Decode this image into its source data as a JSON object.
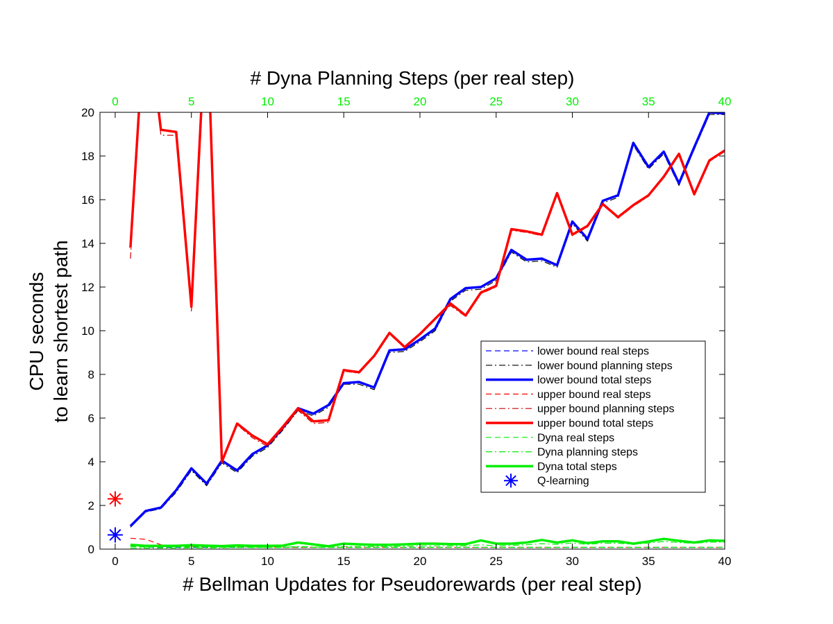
{
  "chart_data": {
    "type": "line",
    "xlabel": "# Bellman Updates for Pseudorewards (per real step)",
    "x2label": "# Dyna Planning Steps (per real step)",
    "ylabel": [
      "CPU seconds",
      "to learn shortest path"
    ],
    "xlim": [
      -1,
      40
    ],
    "ylim": [
      0,
      20
    ],
    "xticks": [
      0,
      5,
      10,
      15,
      20,
      25,
      30,
      35,
      40
    ],
    "yticks": [
      0,
      2,
      4,
      6,
      8,
      10,
      12,
      14,
      16,
      18,
      20
    ],
    "top_xticks": [
      0,
      5,
      10,
      15,
      20,
      25,
      30,
      35,
      40
    ],
    "top_axis_color": "#00ee00",
    "grid": false,
    "legend_position": "lower-right",
    "x": [
      1,
      2,
      3,
      4,
      5,
      6,
      7,
      8,
      9,
      10,
      11,
      12,
      13,
      14,
      15,
      16,
      17,
      18,
      19,
      20,
      21,
      22,
      23,
      24,
      25,
      26,
      27,
      28,
      29,
      30,
      31,
      32,
      33,
      34,
      35,
      36,
      37,
      38,
      39,
      40
    ],
    "series": [
      {
        "name": "lower bound real steps",
        "color": "#0000ff",
        "style": "dashed",
        "width": 1.2,
        "values": [
          0.15,
          0.1,
          0.08,
          0.08,
          0.08,
          0.08,
          0.08,
          0.08,
          0.08,
          0.08,
          0.08,
          0.08,
          0.08,
          0.08,
          0.08,
          0.08,
          0.08,
          0.08,
          0.08,
          0.08,
          0.08,
          0.08,
          0.08,
          0.08,
          0.08,
          0.08,
          0.08,
          0.08,
          0.08,
          0.08,
          0.08,
          0.08,
          0.08,
          0.08,
          0.08,
          0.08,
          0.08,
          0.08,
          0.08,
          0.08
        ]
      },
      {
        "name": "lower bound planning steps",
        "color": "#000000",
        "style": "dashdot",
        "width": 1.2,
        "values": [
          1.0,
          1.7,
          1.85,
          2.6,
          3.6,
          2.9,
          3.95,
          3.5,
          4.25,
          4.65,
          5.45,
          6.35,
          6.1,
          6.5,
          7.55,
          7.55,
          7.3,
          9.0,
          9.05,
          9.5,
          10.0,
          11.35,
          11.85,
          11.9,
          12.3,
          13.6,
          13.15,
          13.2,
          12.9,
          14.9,
          14.1,
          15.85,
          16.1,
          18.5,
          17.4,
          18.1,
          16.65,
          18.3,
          19.9,
          19.9
        ]
      },
      {
        "name": "lower bound total steps",
        "color": "#0000ff",
        "style": "solid",
        "width": 3.5,
        "values": [
          1.05,
          1.75,
          1.9,
          2.7,
          3.7,
          3.0,
          4.05,
          3.6,
          4.35,
          4.75,
          5.55,
          6.45,
          6.2,
          6.6,
          7.6,
          7.65,
          7.4,
          9.1,
          9.15,
          9.6,
          10.1,
          11.45,
          11.95,
          12.0,
          12.4,
          13.7,
          13.25,
          13.3,
          13.0,
          15.0,
          14.2,
          15.95,
          16.2,
          18.6,
          17.5,
          18.2,
          16.75,
          18.4,
          20.0,
          19.95
        ]
      },
      {
        "name": "upper bound real steps",
        "color": "#ff0000",
        "style": "dashed",
        "width": 1.2,
        "values": [
          0.5,
          0.45,
          0.2,
          0.15,
          0.12,
          0.1,
          0.1,
          0.1,
          0.1,
          0.1,
          0.08,
          0.08,
          0.08,
          0.08,
          0.08,
          0.08,
          0.08,
          0.08,
          0.08,
          0.08,
          0.08,
          0.08,
          0.08,
          0.08,
          0.08,
          0.08,
          0.08,
          0.08,
          0.08,
          0.08,
          0.08,
          0.08,
          0.08,
          0.08,
          0.08,
          0.08,
          0.08,
          0.08,
          0.08,
          0.08
        ]
      },
      {
        "name": "upper bound planning steps",
        "color": "#cc0000",
        "style": "dashdot",
        "width": 1.2,
        "values": [
          13.3,
          25,
          18.95,
          18.95,
          10.9,
          25,
          3.9,
          5.7,
          5.1,
          4.7,
          5.5,
          6.35,
          5.75,
          5.8,
          8.15,
          8.05,
          8.8,
          9.85,
          9.2,
          9.8,
          10.5,
          11.15,
          10.65,
          11.7,
          12.0,
          14.6,
          14.5,
          14.35,
          16.25,
          14.35,
          14.75,
          15.75,
          15.15,
          15.7,
          16.15,
          17.0,
          18.05,
          16.2,
          17.75,
          18.2
        ]
      },
      {
        "name": "upper bound total steps",
        "color": "#ff0000",
        "style": "solid",
        "width": 3.5,
        "values": [
          13.8,
          25,
          19.2,
          19.1,
          11.1,
          25,
          4.0,
          5.75,
          5.2,
          4.8,
          5.6,
          6.45,
          5.85,
          5.9,
          8.2,
          8.1,
          8.85,
          9.9,
          9.25,
          9.85,
          10.55,
          11.25,
          10.7,
          11.75,
          12.05,
          14.65,
          14.55,
          14.4,
          16.3,
          14.4,
          14.8,
          15.8,
          15.2,
          15.75,
          16.2,
          17.05,
          18.1,
          16.25,
          17.8,
          18.25
        ]
      },
      {
        "name": "Dyna real steps",
        "color": "#00ee00",
        "style": "dashed",
        "width": 1.2,
        "values": [
          0.12,
          0.1,
          0.1,
          0.1,
          0.1,
          0.1,
          0.08,
          0.1,
          0.08,
          0.08,
          0.08,
          0.1,
          0.08,
          0.08,
          0.08,
          0.08,
          0.08,
          0.08,
          0.08,
          0.08,
          0.08,
          0.08,
          0.08,
          0.08,
          0.08,
          0.08,
          0.08,
          0.08,
          0.08,
          0.08,
          0.08,
          0.08,
          0.08,
          0.08,
          0.08,
          0.08,
          0.08,
          0.08,
          0.08,
          0.08
        ]
      },
      {
        "name": "Dyna planning steps",
        "color": "#00ee00",
        "style": "dashdot",
        "width": 1.2,
        "values": [
          0.05,
          0.05,
          0.05,
          0.05,
          0.06,
          0.06,
          0.06,
          0.07,
          0.07,
          0.07,
          0.08,
          0.12,
          0.1,
          0.08,
          0.12,
          0.12,
          0.12,
          0.12,
          0.13,
          0.15,
          0.15,
          0.15,
          0.15,
          0.2,
          0.15,
          0.17,
          0.2,
          0.25,
          0.22,
          0.28,
          0.22,
          0.27,
          0.27,
          0.22,
          0.28,
          0.35,
          0.3,
          0.27,
          0.32,
          0.32
        ]
      },
      {
        "name": "Dyna total steps",
        "color": "#00ee00",
        "style": "solid",
        "width": 3.5,
        "values": [
          0.2,
          0.15,
          0.15,
          0.15,
          0.18,
          0.16,
          0.14,
          0.17,
          0.15,
          0.15,
          0.16,
          0.3,
          0.22,
          0.13,
          0.25,
          0.22,
          0.2,
          0.2,
          0.22,
          0.25,
          0.25,
          0.23,
          0.23,
          0.4,
          0.25,
          0.25,
          0.3,
          0.42,
          0.3,
          0.4,
          0.28,
          0.36,
          0.36,
          0.25,
          0.35,
          0.47,
          0.38,
          0.3,
          0.4,
          0.38
        ]
      }
    ],
    "markers": [
      {
        "name": "Q-learning",
        "x": 0,
        "y": 0.65,
        "color": "#0000ff",
        "symbol": "asterisk"
      },
      {
        "x": 0,
        "y": 2.3,
        "color": "#ff0000",
        "symbol": "asterisk"
      }
    ]
  }
}
